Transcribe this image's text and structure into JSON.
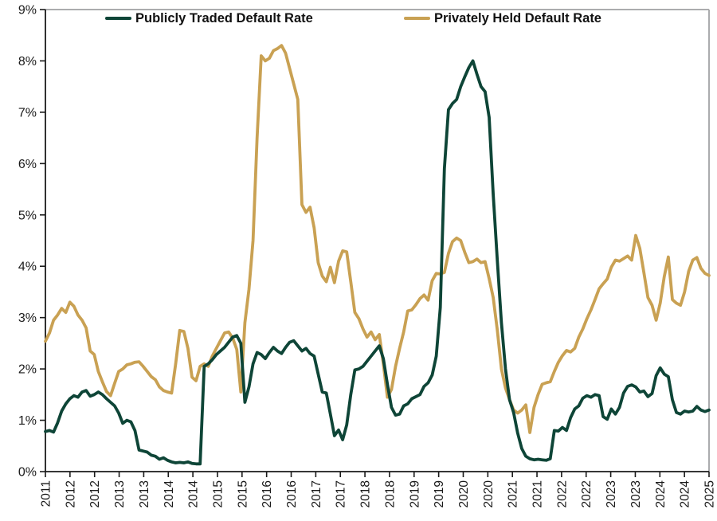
{
  "frame": {
    "background": "#FFFFFF",
    "axis_color": "#1a1a1a",
    "border_color": "#ABACAE",
    "tick_label_color": "#1a1a1a"
  },
  "chart_data": {
    "type": "line",
    "title": "",
    "xlabel": "",
    "ylabel": "",
    "ylim": [
      0,
      9
    ],
    "grid": "off",
    "legend_position": "top-inside",
    "y_tick_labels": [
      "0%",
      "1%",
      "2%",
      "3%",
      "4%",
      "5%",
      "6%",
      "7%",
      "8%",
      "9%"
    ],
    "x_tick_labels": [
      "2011",
      "2012",
      "2012",
      "2013",
      "2013",
      "2014",
      "2014",
      "2015",
      "2015",
      "2016",
      "2016",
      "2017",
      "2017",
      "2018",
      "2018",
      "2019",
      "2019",
      "2020",
      "2020",
      "2021",
      "2021",
      "2022",
      "2022",
      "2023",
      "2023",
      "2024",
      "2024",
      "2025"
    ],
    "x_sampling": "monthly, evenly spaced from first tick (2011) to right edge (2025)",
    "series": [
      {
        "name": "Publicly Traded Default Rate",
        "color": "#0E4537",
        "values": [
          0.78,
          0.8,
          0.77,
          0.95,
          1.18,
          1.32,
          1.42,
          1.48,
          1.45,
          1.55,
          1.58,
          1.47,
          1.5,
          1.55,
          1.5,
          1.42,
          1.35,
          1.28,
          1.14,
          0.94,
          1.0,
          0.97,
          0.8,
          0.42,
          0.4,
          0.38,
          0.32,
          0.3,
          0.24,
          0.27,
          0.22,
          0.19,
          0.17,
          0.18,
          0.17,
          0.19,
          0.16,
          0.15,
          0.15,
          2.05,
          2.1,
          2.18,
          2.28,
          2.35,
          2.42,
          2.52,
          2.62,
          2.65,
          2.5,
          1.35,
          1.65,
          2.1,
          2.32,
          2.28,
          2.2,
          2.32,
          2.42,
          2.35,
          2.3,
          2.42,
          2.52,
          2.55,
          2.45,
          2.35,
          2.4,
          2.3,
          2.25,
          1.9,
          1.55,
          1.53,
          1.12,
          0.7,
          0.81,
          0.62,
          0.91,
          1.5,
          1.98,
          2.0,
          2.05,
          2.15,
          2.25,
          2.35,
          2.45,
          2.2,
          1.7,
          1.25,
          1.1,
          1.12,
          1.28,
          1.32,
          1.42,
          1.46,
          1.5,
          1.66,
          1.73,
          1.88,
          2.25,
          3.2,
          5.9,
          7.05,
          7.17,
          7.25,
          7.5,
          7.69,
          7.87,
          8.0,
          7.74,
          7.5,
          7.4,
          6.9,
          5.4,
          4.1,
          2.9,
          2.0,
          1.4,
          1.15,
          0.75,
          0.45,
          0.3,
          0.25,
          0.23,
          0.24,
          0.23,
          0.22,
          0.25,
          0.8,
          0.79,
          0.86,
          0.8,
          1.05,
          1.22,
          1.28,
          1.43,
          1.48,
          1.45,
          1.5,
          1.48,
          1.07,
          1.02,
          1.22,
          1.12,
          1.25,
          1.53,
          1.66,
          1.69,
          1.65,
          1.55,
          1.57,
          1.46,
          1.52,
          1.87,
          2.02,
          1.9,
          1.85,
          1.4,
          1.15,
          1.12,
          1.18,
          1.16,
          1.18,
          1.27,
          1.2,
          1.17,
          1.2
        ]
      },
      {
        "name": "Privately Held Default Rate",
        "color": "#C9A153",
        "values": [
          2.54,
          2.7,
          2.95,
          3.05,
          3.18,
          3.1,
          3.3,
          3.22,
          3.05,
          2.95,
          2.8,
          2.35,
          2.28,
          1.95,
          1.75,
          1.56,
          1.48,
          1.72,
          1.95,
          2.0,
          2.08,
          2.1,
          2.13,
          2.14,
          2.05,
          1.95,
          1.85,
          1.79,
          1.65,
          1.58,
          1.55,
          1.53,
          2.1,
          2.75,
          2.73,
          2.4,
          1.84,
          1.77,
          2.05,
          2.1,
          2.05,
          2.25,
          2.4,
          2.55,
          2.7,
          2.72,
          2.6,
          2.38,
          1.55,
          2.9,
          3.55,
          4.5,
          6.5,
          8.1,
          8.0,
          8.05,
          8.2,
          8.24,
          8.3,
          8.15,
          7.85,
          7.55,
          7.25,
          5.2,
          5.05,
          5.15,
          4.75,
          4.07,
          3.81,
          3.7,
          3.98,
          3.68,
          4.1,
          4.3,
          4.28,
          3.7,
          3.1,
          2.98,
          2.78,
          2.62,
          2.72,
          2.57,
          2.67,
          2.1,
          1.45,
          1.6,
          2.05,
          2.4,
          2.72,
          3.13,
          3.15,
          3.25,
          3.37,
          3.44,
          3.34,
          3.72,
          3.86,
          3.85,
          3.88,
          4.25,
          4.48,
          4.55,
          4.5,
          4.27,
          4.07,
          4.09,
          4.14,
          4.07,
          4.09,
          3.76,
          3.39,
          2.75,
          2.0,
          1.63,
          1.4,
          1.2,
          1.14,
          1.2,
          1.3,
          0.76,
          1.25,
          1.5,
          1.7,
          1.73,
          1.75,
          1.95,
          2.13,
          2.26,
          2.36,
          2.33,
          2.4,
          2.62,
          2.78,
          2.98,
          3.15,
          3.35,
          3.56,
          3.66,
          3.75,
          3.98,
          4.12,
          4.1,
          4.15,
          4.2,
          4.12,
          4.6,
          4.35,
          3.88,
          3.39,
          3.24,
          2.95,
          3.28,
          3.8,
          4.18,
          3.35,
          3.28,
          3.24,
          3.5,
          3.9,
          4.12,
          4.17,
          3.96,
          3.86,
          3.82
        ]
      }
    ]
  }
}
